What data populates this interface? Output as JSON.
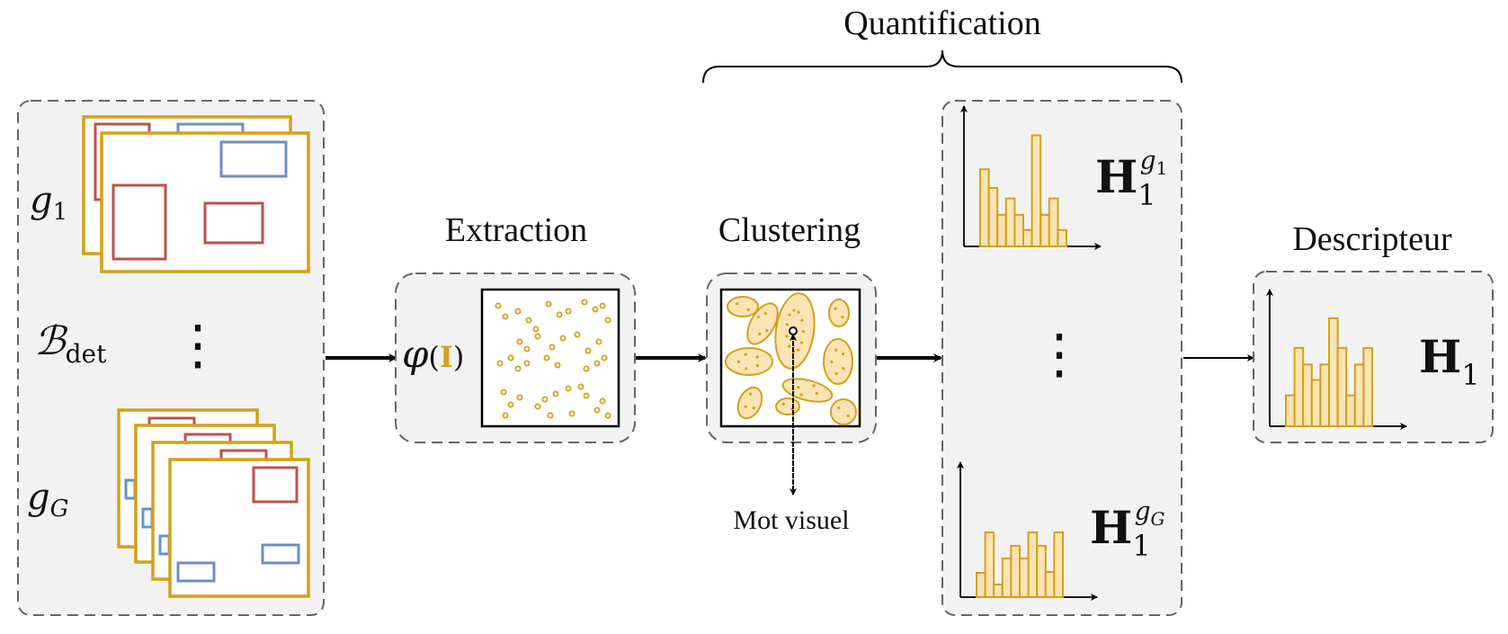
{
  "labels": {
    "quantification": "Quantification",
    "extraction": "Extraction",
    "clustering": "Clustering",
    "descripteur": "Descripteur",
    "mot_visuel": "Mot visuel"
  },
  "math": {
    "g1_base": "g",
    "g1_sub": "1",
    "gG_base": "g",
    "gG_sub": "G",
    "bdet_base": "ℬ",
    "bdet_sub": "det",
    "phi": "φ",
    "phi_open": "(",
    "phi_arg": "I",
    "phi_close": ")",
    "H_base": "H",
    "H_sub": "1",
    "H_sup_g": "g",
    "H_sup_1": "1",
    "H_sup_G": "G",
    "H1_base": "H",
    "H1_sub": "1",
    "vdots": "⋮",
    "vdots2": "⋮"
  },
  "colors": {
    "gold": "#d4a017",
    "gold_fill": "#fbe3b4",
    "red_box": "#c0504d",
    "blue_box": "#6d8fc7",
    "panel_bg": "#f2f2f2",
    "panel_border": "#666666"
  },
  "histograms": {
    "top": [
      0.66,
      0.5,
      0.27,
      0.41,
      0.27,
      0.14,
      0.95,
      0.27,
      0.41,
      0.14
    ],
    "bottom": [
      0.27,
      0.72,
      0.14,
      0.43,
      0.57,
      0.43,
      0.72,
      0.57,
      0.28,
      0.72
    ],
    "descriptor": [
      0.26,
      0.66,
      0.52,
      0.39,
      0.52,
      0.91,
      0.66,
      0.26,
      0.52,
      0.66
    ]
  }
}
